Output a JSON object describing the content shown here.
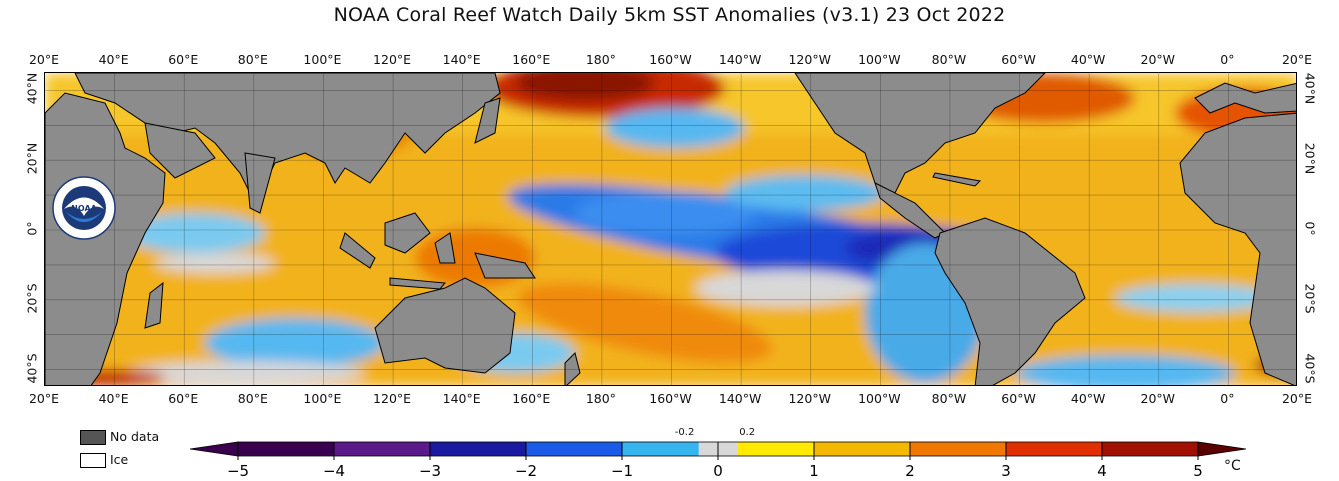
{
  "title": "NOAA Coral Reef Watch Daily 5km SST Anomalies  (v3.1)   23 Oct 2022",
  "lon_labels": [
    "20°E",
    "40°E",
    "60°E",
    "80°E",
    "100°E",
    "120°E",
    "140°E",
    "160°E",
    "180°",
    "160°W",
    "140°W",
    "120°W",
    "100°W",
    "80°W",
    "60°W",
    "40°W",
    "20°W",
    "0°",
    "20°E"
  ],
  "lat_labels_left": [
    "40°N",
    "20°N",
    "0°",
    "20°S",
    "40°S"
  ],
  "lat_labels_right": [
    "40°N",
    "20°N",
    "0°",
    "20°S",
    "40°S"
  ],
  "lat_values": [
    40,
    20,
    0,
    -20,
    -40
  ],
  "lat_range": [
    -45,
    45
  ],
  "lon_span_deg": 360,
  "legend": {
    "no_data": "No data",
    "ice": "Ice",
    "no_data_color": "#555555",
    "ice_color": "#ffffff",
    "land_color": "#8c8c8c"
  },
  "colorbar": {
    "ticks": [
      "−5",
      "−4",
      "−3",
      "−2",
      "−1",
      "0",
      "1",
      "2",
      "3",
      "4",
      "5"
    ],
    "tick_values": [
      -5,
      -4,
      -3,
      -2,
      -1,
      0,
      1,
      2,
      3,
      4,
      5
    ],
    "small_ticks": [
      "-0.2",
      "0.2"
    ],
    "small_tick_values": [
      -0.2,
      0.2
    ],
    "unit": "°C",
    "range": [
      -5,
      5
    ],
    "colors": {
      "n5": "#3a0050",
      "n4": "#5a1a8a",
      "n3": "#1a1aa0",
      "n2": "#1a5ce6",
      "n1": "#36b4f0",
      "neutral": "#d8d8d8",
      "p0": "#ffea00",
      "p1": "#f5b800",
      "p2": "#f07800",
      "p3": "#e03000",
      "p4": "#a01000",
      "p5": "#5a0000"
    }
  },
  "logo": {
    "text": "NOAA",
    "icon": "noaa-logo-icon"
  }
}
